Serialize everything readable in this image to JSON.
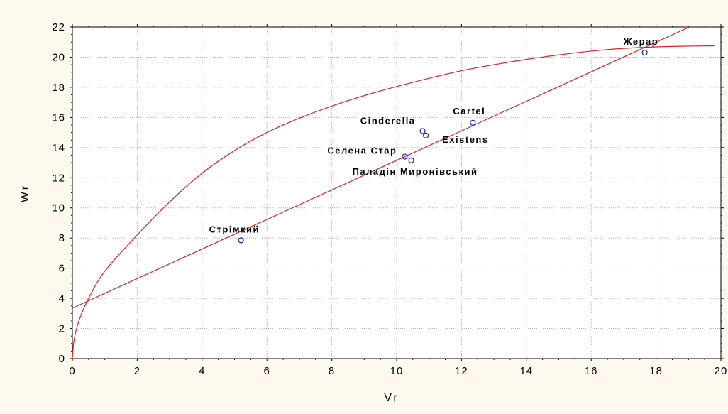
{
  "chart_data": {
    "type": "scatter",
    "title": "",
    "xlabel": "Vr",
    "ylabel": "Wr",
    "xlim": [
      0,
      20
    ],
    "ylim": [
      0,
      22
    ],
    "xticks": [
      0,
      2,
      4,
      6,
      8,
      10,
      12,
      14,
      16,
      18,
      20
    ],
    "yticks": [
      0,
      2,
      4,
      6,
      8,
      10,
      12,
      14,
      16,
      18,
      20,
      22
    ],
    "grid": true,
    "legend": "none",
    "colors": {
      "points": "#1a1adc",
      "curves": "#e02020",
      "background": "#fdf9ee",
      "plot_area": "#ffffff",
      "grid": "#b4b4b4"
    },
    "points": [
      {
        "label": "Стрімкий",
        "x": 5.2,
        "y": 7.85
      },
      {
        "label": "Селена Стар",
        "x": 10.25,
        "y": 13.4
      },
      {
        "label": "Паладін Миронівський",
        "x": 10.45,
        "y": 13.15
      },
      {
        "label": "Cinderella",
        "x": 10.8,
        "y": 15.1
      },
      {
        "label": "Existens",
        "x": 10.9,
        "y": 14.8
      },
      {
        "label": "Cartel",
        "x": 12.35,
        "y": 15.65
      },
      {
        "label": "Жерар",
        "x": 17.65,
        "y": 20.3
      }
    ],
    "fit_lines": [
      {
        "type": "linear",
        "intercept": 3.35,
        "slope": 0.98,
        "x_range": [
          0,
          20
        ]
      },
      {
        "type": "curve",
        "x": [
          0,
          0.05,
          0.2,
          0.5,
          1,
          2,
          3,
          4,
          5,
          6,
          7,
          8,
          9,
          10,
          11,
          12,
          13,
          14,
          15,
          16,
          17,
          18,
          19,
          19.8
        ],
        "y": [
          0,
          1.2,
          2.5,
          4.0,
          5.8,
          8.2,
          10.4,
          12.3,
          13.8,
          15.0,
          15.95,
          16.75,
          17.45,
          18.05,
          18.6,
          19.1,
          19.5,
          19.85,
          20.15,
          20.4,
          20.58,
          20.68,
          20.73,
          20.75
        ]
      }
    ]
  }
}
